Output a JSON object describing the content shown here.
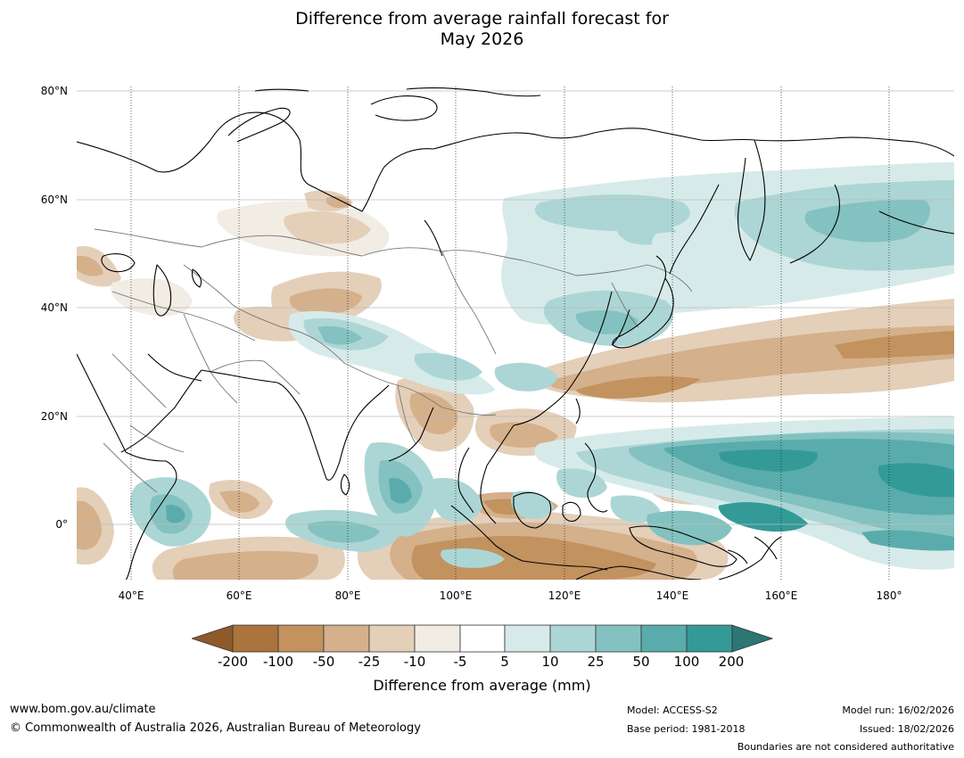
{
  "title": {
    "line1": "Difference from average rainfall forecast for",
    "line2": "May 2026"
  },
  "map": {
    "lat_labels": [
      "80°N",
      "60°N",
      "40°N",
      "20°N",
      "0°"
    ],
    "lon_labels": [
      "40°E",
      "60°E",
      "80°E",
      "100°E",
      "120°E",
      "140°E",
      "160°E",
      "180°"
    ],
    "extent": {
      "lon_min": 30,
      "lon_max": 192,
      "lat_min": -10,
      "lat_max": 80
    }
  },
  "colorbar": {
    "title": "Difference from average (mm)",
    "labels": [
      "-200",
      "-100",
      "-50",
      "-25",
      "-10",
      "-5",
      "5",
      "10",
      "25",
      "50",
      "100",
      "200"
    ],
    "colors": {
      "lt_neg200": "#8f5a2a",
      "neg200_neg100": "#ab743c",
      "neg100_neg50": "#c2925f",
      "neg50_neg25": "#d4b08b",
      "neg25_neg10": "#e4cfb9",
      "neg10_neg5": "#f1ece4",
      "neg5_5": "#ffffff",
      "p5_10": "#d6ebe9",
      "p10_25": "#acd6d5",
      "p25_50": "#83c2c0",
      "p50_100": "#5aacac",
      "p100_200": "#349a98",
      "gt_200": "#2c7674"
    }
  },
  "footer": {
    "website": "www.bom.gov.au/climate",
    "copyright": "© Commonwealth of Australia 2026, Australian Bureau of Meteorology",
    "model": "Model: ACCESS-S2",
    "base_period": "Base period: 1981-2018",
    "model_run": "Model run: 16/02/2026",
    "issued": "Issued: 18/02/2026",
    "disclaimer": "Boundaries are not considered authoritative"
  }
}
